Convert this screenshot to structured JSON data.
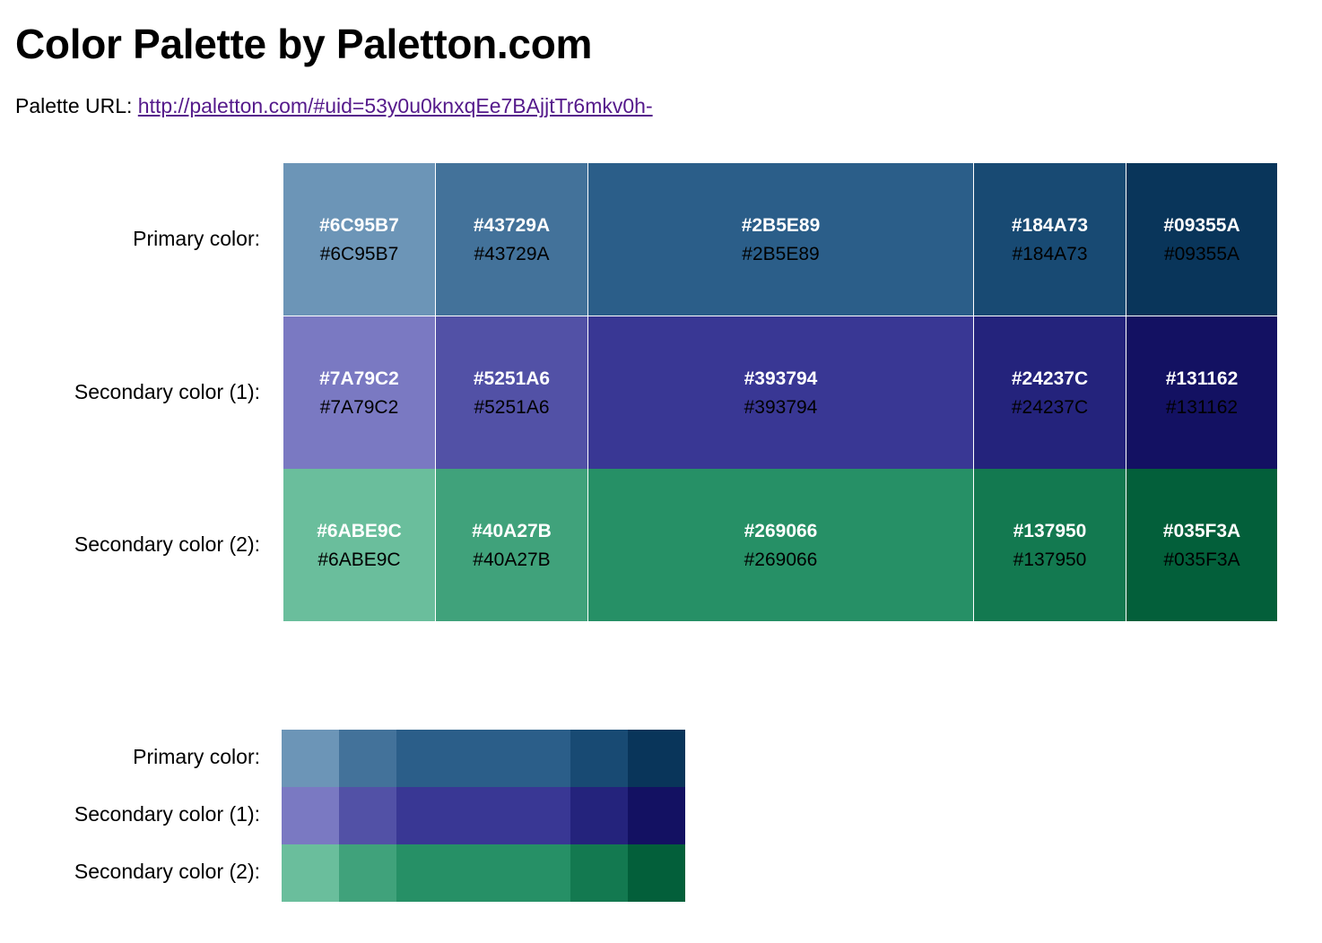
{
  "page": {
    "title": "Color Palette by Paletton.com",
    "url_label": "Palette URL:",
    "url_text": "http://paletton.com/#uid=53y0u0knxqEe7BAjjtTr6mkv0h-"
  },
  "palette": {
    "rows": [
      {
        "label": "Primary color:",
        "colors": [
          "#6C95B7",
          "#43729A",
          "#2B5E89",
          "#184A73",
          "#09355A"
        ]
      },
      {
        "label": "Secondary color (1):",
        "colors": [
          "#7A79C2",
          "#5251A6",
          "#393794",
          "#24237C",
          "#131162"
        ]
      },
      {
        "label": "Secondary color (2):",
        "colors": [
          "#6ABE9C",
          "#40A27B",
          "#269066",
          "#137950",
          "#035F3A"
        ]
      }
    ]
  }
}
